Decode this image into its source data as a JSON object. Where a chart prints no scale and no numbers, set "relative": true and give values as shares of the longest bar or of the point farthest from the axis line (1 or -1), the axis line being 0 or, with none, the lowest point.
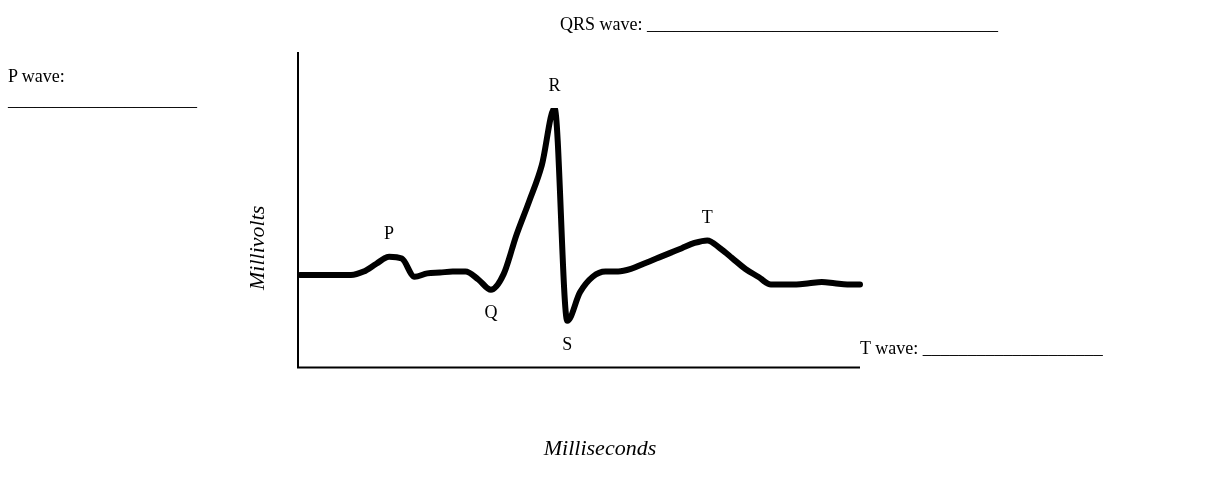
{
  "chart_data": {
    "type": "line",
    "relative": true,
    "xlabel": "Milliseconds",
    "ylabel": "Millivolts",
    "marker": "none",
    "legend": false,
    "grid": false,
    "categories": [
      null,
      null,
      null,
      null,
      null,
      null,
      null,
      null,
      null,
      null,
      null,
      null,
      null,
      null,
      null,
      null,
      null,
      null,
      null,
      null,
      null,
      null,
      null,
      null,
      null,
      null,
      null,
      null,
      null,
      null,
      null,
      null,
      null,
      null,
      null,
      null,
      null,
      null,
      null,
      null,
      null,
      null,
      null,
      null,
      null
    ],
    "series": [
      {
        "color": "#000000",
        "values": [
          0.357,
          0.357,
          0.357,
          0.357,
          0.357,
          0.37,
          0.4,
          0.427,
          0.42,
          0.35,
          0.363,
          0.366,
          0.37,
          0.37,
          0.34,
          0.3,
          0.36,
          0.51,
          0.64,
          0.78,
          1,
          0.18,
          0.29,
          0.35,
          0.37,
          0.37,
          0.38,
          0.4,
          0.42,
          0.44,
          0.46,
          0.48,
          0.49,
          0.46,
          0.42,
          0.38,
          0.35,
          0.32,
          0.32,
          0.32,
          0.325,
          0.33,
          0.325,
          0.32,
          0.32
        ]
      }
    ],
    "annotations": [
      {
        "text": "P",
        "y": 0.427
      },
      {
        "text": "Q",
        "y": 0.3
      },
      {
        "text": "R",
        "y": 1
      },
      {
        "text": "S",
        "y": 0.18
      },
      {
        "text": "T",
        "y": 0.49
      },
      "QRS wave: _______________________________________",
      "P wave:",
      "_____________________",
      "T wave: ____________________"
    ]
  }
}
